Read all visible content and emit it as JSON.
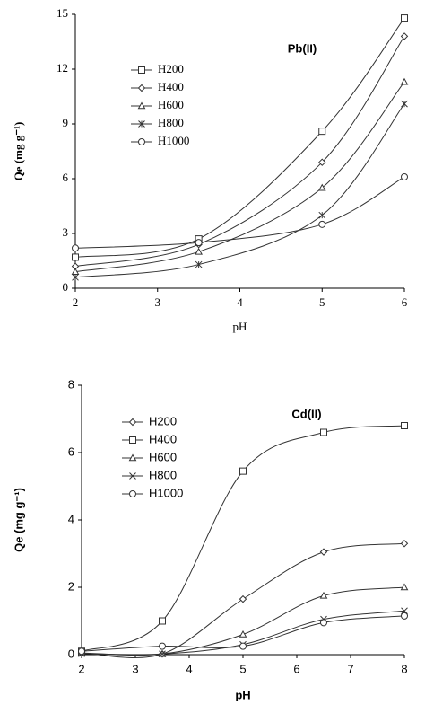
{
  "chart_data": [
    {
      "type": "line",
      "annotation": "Pb(II)",
      "x_label": "pH",
      "y_label": "Qe (mg g⁻¹)",
      "x": [
        2,
        3.5,
        5,
        6
      ],
      "xlim": [
        2,
        6
      ],
      "xticks": [
        2,
        3,
        4,
        5,
        6
      ],
      "ylim": [
        0,
        15
      ],
      "yticks": [
        0,
        3,
        6,
        9,
        12,
        15
      ],
      "grid": false,
      "color": "#333333",
      "series": [
        {
          "name": "H200",
          "marker": "square",
          "values": [
            1.7,
            2.7,
            8.6,
            14.8
          ]
        },
        {
          "name": "H400",
          "marker": "diamond",
          "values": [
            1.2,
            2.4,
            6.9,
            13.8
          ]
        },
        {
          "name": "H600",
          "marker": "triangle",
          "values": [
            0.9,
            2.0,
            5.5,
            11.3
          ]
        },
        {
          "name": "H800",
          "marker": "star",
          "values": [
            0.6,
            1.3,
            4.0,
            10.1
          ]
        },
        {
          "name": "H1000",
          "marker": "circle",
          "values": [
            2.2,
            2.5,
            3.5,
            6.1
          ]
        }
      ]
    },
    {
      "type": "line",
      "annotation": "Cd(II)",
      "x_label": "pH",
      "y_label": "Qe (mg g⁻¹)",
      "x": [
        2,
        3.5,
        5,
        6.5,
        8
      ],
      "xlim": [
        2,
        8
      ],
      "xticks": [
        2,
        3,
        4,
        5,
        6,
        7,
        8
      ],
      "ylim": [
        0,
        8
      ],
      "yticks": [
        0,
        2,
        4,
        6,
        8
      ],
      "grid": false,
      "color": "#333333",
      "series": [
        {
          "name": "H200",
          "marker": "diamond",
          "values": [
            0.05,
            0.02,
            1.65,
            3.05,
            3.3
          ]
        },
        {
          "name": "H400",
          "marker": "square",
          "values": [
            0.1,
            1.0,
            5.45,
            6.6,
            6.8
          ]
        },
        {
          "name": "H600",
          "marker": "triangle",
          "values": [
            0.05,
            0.02,
            0.6,
            1.75,
            2.0
          ]
        },
        {
          "name": "H800",
          "marker": "cross",
          "values": [
            0.03,
            0.02,
            0.3,
            1.05,
            1.3
          ]
        },
        {
          "name": "H1000",
          "marker": "circle",
          "values": [
            0.1,
            0.25,
            0.25,
            0.95,
            1.15
          ]
        }
      ]
    }
  ]
}
